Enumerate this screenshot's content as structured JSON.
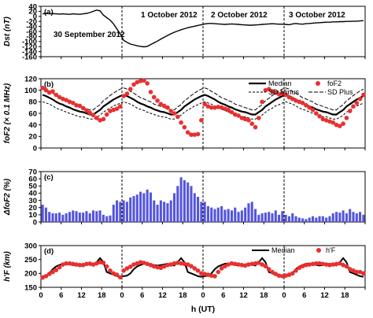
{
  "chart_data": [
    {
      "panel": "(a)",
      "type": "line",
      "ylabel": "Dst (nT)",
      "ylim": [
        -160,
        40
      ],
      "yticks": [
        40,
        20,
        0,
        -20,
        -40,
        -60,
        -80,
        -100,
        -120,
        -140,
        -160
      ],
      "date_labels": [
        "30 September 2012",
        "1 October 2012",
        "2 October 2012",
        "3 October 2012"
      ],
      "x": [
        0,
        1,
        2,
        3,
        4,
        5,
        6,
        7,
        8,
        9,
        10,
        11,
        12,
        13,
        14,
        15,
        16,
        17,
        18,
        19,
        20,
        21,
        22,
        23,
        24,
        25,
        26,
        27,
        28,
        29,
        30,
        31,
        32,
        33,
        34,
        35,
        36,
        37,
        38,
        39,
        40,
        41,
        42,
        43,
        44,
        45,
        46,
        47,
        48,
        49,
        50,
        51,
        52,
        53,
        54,
        55,
        56,
        57,
        58,
        59,
        60,
        61,
        62,
        63,
        64,
        65,
        66,
        67,
        68,
        69,
        70,
        71,
        72,
        73,
        74,
        75,
        76,
        77,
        78,
        79,
        80,
        81,
        82,
        83,
        84,
        85,
        86,
        87,
        88,
        89,
        90,
        91,
        92,
        93,
        94,
        95
      ],
      "values": [
        10,
        12,
        10,
        11,
        10,
        9,
        10,
        9,
        8,
        10,
        9,
        8,
        10,
        12,
        15,
        20,
        25,
        22,
        5,
        -5,
        -15,
        -30,
        -50,
        -70,
        -95,
        -103,
        -110,
        -113,
        -117,
        -119,
        -121,
        -119,
        -112,
        -105,
        -98,
        -90,
        -83,
        -76,
        -69,
        -63,
        -58,
        -53,
        -49,
        -45,
        -42,
        -39,
        -36,
        -33,
        -30,
        -28,
        -28,
        -29,
        -30,
        -31,
        -32,
        -31,
        -30,
        -31,
        -32,
        -33,
        -34,
        -35,
        -35,
        -34,
        -33,
        -32,
        -31,
        -30,
        -29,
        -30,
        -31,
        -31,
        -32,
        -33,
        -30,
        -28,
        -30,
        -31,
        -29,
        -28,
        -27,
        -26,
        -25,
        -24,
        -23,
        -23,
        -22,
        -22,
        -21,
        -21,
        -20,
        -20,
        -19,
        -19,
        -18,
        -17
      ]
    },
    {
      "panel": "(b)",
      "type": "line",
      "ylabel": "foF2 (× 0.1 MHz)",
      "ylim": [
        0,
        120
      ],
      "yticks": [
        0,
        20,
        40,
        60,
        80,
        100,
        120
      ],
      "legend": [
        "Median",
        "foF2",
        "SD Minus",
        "SD Plus"
      ],
      "median_by_hour": [
        92,
        90,
        87,
        84,
        80,
        77,
        75,
        72,
        70,
        67,
        65,
        63,
        62,
        60,
        58,
        58,
        62,
        66,
        72,
        76,
        80,
        84,
        87,
        90
      ],
      "sd_half_by_hour": [
        12,
        12,
        11,
        11,
        11,
        10,
        10,
        10,
        10,
        9,
        9,
        9,
        8,
        8,
        8,
        8,
        9,
        9,
        10,
        10,
        11,
        11,
        12,
        12
      ],
      "foF2": [
        104,
        100,
        96,
        98,
        92,
        88,
        85,
        83,
        80,
        78,
        74,
        73,
        69,
        65,
        61,
        57,
        52,
        48,
        50,
        58,
        64,
        66,
        68,
        72,
        90,
        94,
        102,
        110,
        114,
        116,
        117,
        112,
        97,
        88,
        82,
        76,
        73,
        70,
        64,
        60,
        54,
        44,
        36,
        27,
        23,
        23,
        24,
        48,
        76,
        72,
        70,
        70,
        71,
        70,
        68,
        66,
        62,
        58,
        56,
        52,
        50,
        48,
        42,
        36,
        52,
        80,
        100,
        102,
        98,
        96,
        93,
        95,
        92,
        88,
        85,
        82,
        80,
        78,
        74,
        70,
        66,
        60,
        55,
        50,
        48,
        46,
        44,
        40,
        38,
        42,
        52,
        64,
        72,
        78,
        85,
        92
      ],
      "series_colors": {
        "median": "#000000",
        "foF2": "#e83030",
        "sd": "#000000"
      }
    },
    {
      "panel": "(c)",
      "type": "bar",
      "ylabel": "ΔfoF2 (%)",
      "ylim": [
        0,
        70
      ],
      "yticks": [
        0,
        10,
        20,
        30,
        40,
        50,
        60,
        70
      ],
      "values": [
        24,
        20,
        14,
        12,
        12,
        13,
        10,
        12,
        14,
        16,
        15,
        13,
        13,
        15,
        12,
        16,
        15,
        16,
        10,
        8,
        9,
        24,
        30,
        28,
        30,
        28,
        34,
        36,
        38,
        42,
        40,
        45,
        41,
        30,
        24,
        30,
        28,
        26,
        30,
        40,
        50,
        62,
        58,
        55,
        50,
        40,
        35,
        28,
        28,
        22,
        20,
        18,
        20,
        22,
        17,
        18,
        16,
        20,
        14,
        16,
        20,
        26,
        28,
        18,
        10,
        12,
        13,
        14,
        12,
        16,
        10,
        15,
        10,
        8,
        12,
        8,
        6,
        5,
        4,
        6,
        8,
        6,
        8,
        8,
        6,
        8,
        12,
        14,
        13,
        16,
        12,
        18,
        14,
        12,
        14,
        10
      ],
      "color": "#5555dd"
    },
    {
      "panel": "(d)",
      "type": "line",
      "ylabel": "h'F (km)",
      "xlabel": "h (UT)",
      "ylim": [
        150,
        300
      ],
      "yticks": [
        150,
        200,
        250,
        300
      ],
      "xtick_labels": [
        "0",
        "6",
        "12",
        "18",
        "0",
        "6",
        "12",
        "18",
        "0",
        "6",
        "12",
        "18",
        "0",
        "6",
        "12",
        "18"
      ],
      "legend": [
        "Median",
        "h'F"
      ],
      "median_by_hour": [
        190,
        192,
        200,
        215,
        225,
        230,
        235,
        235,
        232,
        230,
        228,
        230,
        232,
        235,
        232,
        228,
        240,
        255,
        240,
        205,
        200,
        195,
        190,
        188
      ],
      "hF": [
        185,
        190,
        198,
        205,
        212,
        222,
        232,
        236,
        236,
        234,
        232,
        230,
        230,
        234,
        235,
        232,
        236,
        240,
        238,
        225,
        210,
        200,
        195,
        186,
        210,
        218,
        224,
        232,
        236,
        240,
        238,
        234,
        230,
        225,
        222,
        220,
        225,
        230,
        232,
        236,
        238,
        236,
        234,
        232,
        226,
        218,
        210,
        200,
        198,
        195,
        192,
        190,
        205,
        218,
        226,
        232,
        236,
        234,
        232,
        230,
        228,
        232,
        234,
        236,
        238,
        232,
        226,
        215,
        205,
        198,
        192,
        190,
        192,
        195,
        200,
        210,
        220,
        226,
        230,
        232,
        234,
        236,
        236,
        234,
        232,
        230,
        232,
        234,
        236,
        230,
        225,
        215,
        210,
        205,
        205,
        200
      ],
      "series_colors": {
        "median": "#000000",
        "hF": "#e83030"
      }
    }
  ]
}
